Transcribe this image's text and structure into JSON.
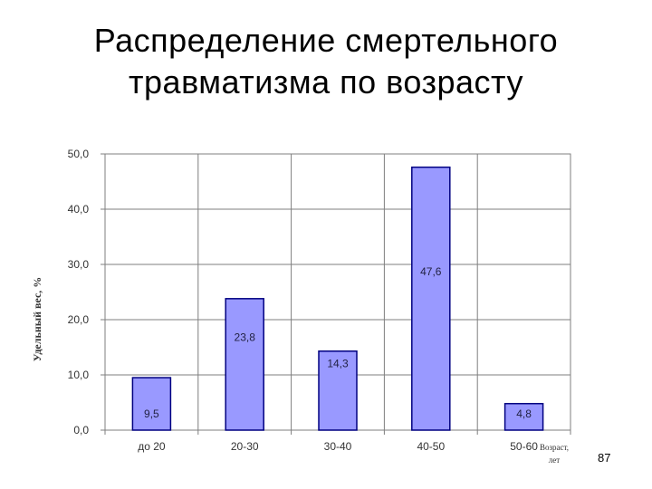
{
  "title": {
    "line1": "Распределение смертельного",
    "line2": "травматизма по возрасту"
  },
  "page_number": "87",
  "chart_data": {
    "type": "bar",
    "categories": [
      "до 20",
      "20-30",
      "30-40",
      "40-50",
      "50-60"
    ],
    "values": [
      9.5,
      23.8,
      14.3,
      47.6,
      4.8
    ],
    "data_labels": [
      "9,5",
      "23,8",
      "14,3",
      "47,6",
      "4,8"
    ],
    "yticks": [
      "0,0",
      "10,0",
      "20,0",
      "30,0",
      "40,0",
      "50,0"
    ],
    "ylim": [
      0,
      50
    ],
    "ylabel": "Удельный вес, %",
    "xlabel_lines": [
      "Возраст,",
      "лет"
    ],
    "grid": true,
    "colors": {
      "bar_fill": "#9999ff",
      "bar_stroke": "#000080",
      "grid": "#7f7f7f"
    }
  }
}
